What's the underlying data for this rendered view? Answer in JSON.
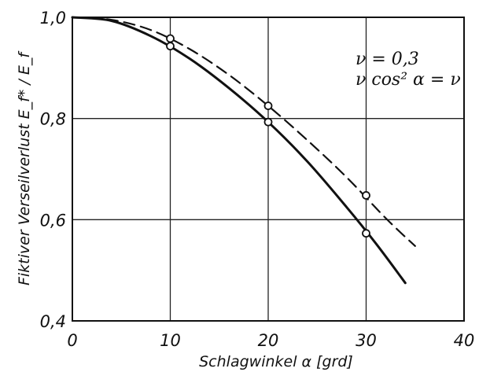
{
  "chart_data": {
    "type": "line",
    "xlabel": "Schlagwinkel α [grd]",
    "ylabel": "Fiktiver Verseilverlust E_f* / E_f",
    "xlim": [
      0,
      40
    ],
    "ylim": [
      0.4,
      1.0
    ],
    "xticks": [
      0,
      10,
      20,
      30,
      40
    ],
    "yticks": [
      0.4,
      0.6,
      0.8,
      1.0
    ],
    "x_tick_labels": [
      "0",
      "10",
      "20",
      "30",
      "40"
    ],
    "y_tick_labels": [
      "0,4",
      "0,6",
      "0,8",
      "1,0"
    ],
    "grid": true,
    "annotations": [
      "ν = 0,3",
      "ν cos² α = ν"
    ],
    "series": [
      {
        "line_style": "solid",
        "x": [
          0,
          4,
          8,
          12,
          16,
          20,
          24,
          28,
          31,
          34
        ],
        "y": [
          1.0,
          0.993,
          0.963,
          0.918,
          0.86,
          0.793,
          0.715,
          0.625,
          0.553,
          0.475
        ]
      },
      {
        "line_style": "dashed",
        "x": [
          0,
          4,
          8,
          12,
          16,
          20,
          24,
          28,
          32,
          35
        ],
        "y": [
          1.0,
          0.995,
          0.975,
          0.937,
          0.886,
          0.825,
          0.757,
          0.684,
          0.603,
          0.548
        ]
      }
    ],
    "markers": [
      {
        "series": "solid",
        "x": 10,
        "y": 0.943
      },
      {
        "series": "solid",
        "x": 20,
        "y": 0.793
      },
      {
        "series": "solid",
        "x": 30,
        "y": 0.573
      },
      {
        "series": "dashed",
        "x": 10,
        "y": 0.958
      },
      {
        "series": "dashed",
        "x": 20,
        "y": 0.825
      },
      {
        "series": "dashed",
        "x": 30,
        "y": 0.648
      }
    ]
  }
}
